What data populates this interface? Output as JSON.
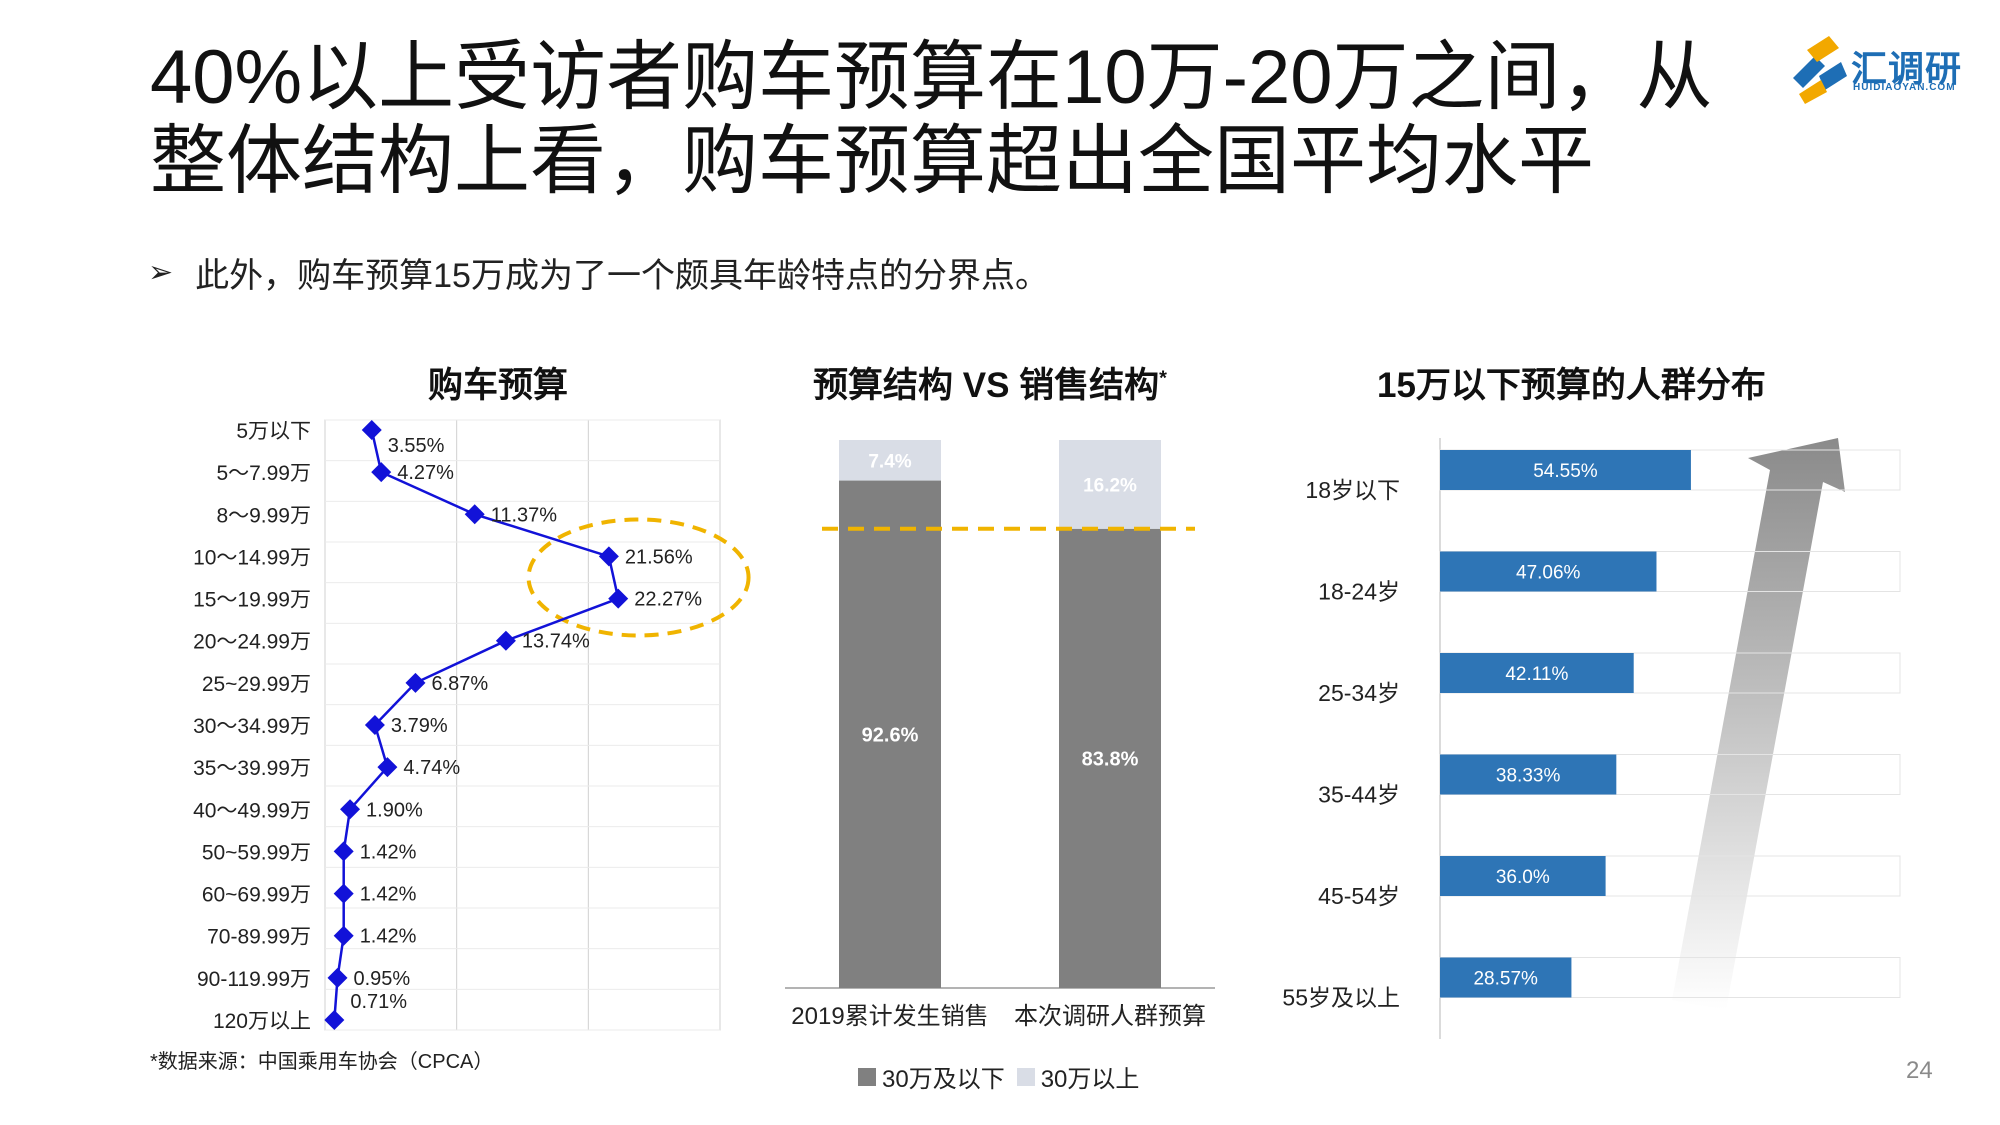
{
  "title_lines": [
    "40%以上受访者购车预算在10万-20万之间，从",
    "整体结构上看，购车预算超出全国平均水平"
  ],
  "logo": {
    "text": "汇调研",
    "sub": "HUIDIAOYAN.COM"
  },
  "bullet": {
    "symbol": "➢",
    "text": "此外，购车预算15万成为了一个颇具年龄特点的分界点。"
  },
  "source": "*数据来源：中国乘用车协会（CPCA）",
  "page_number": "24",
  "colors": {
    "line": "#1212d8",
    "highlight": "#f0b400",
    "dark_bar": "#808080",
    "light_bar": "#d9dde6",
    "blue_bar": "#2e75b6",
    "grid": "#d0d0d0"
  },
  "chart_data": [
    {
      "type": "line",
      "title": "购车预算",
      "categories": [
        "5万以下",
        "5～7.99万",
        "8～9.99万",
        "10～14.99万",
        "15～19.99万",
        "20～24.99万",
        "25~29.99万",
        "30～34.99万",
        "35～39.99万",
        "40～49.99万",
        "50~59.99万",
        "60~69.99万",
        "70-89.99万",
        "90-119.99万",
        "120万以上"
      ],
      "values": [
        3.55,
        4.27,
        11.37,
        21.56,
        22.27,
        13.74,
        6.87,
        3.79,
        4.74,
        1.9,
        1.42,
        1.42,
        1.42,
        0.95,
        0.71
      ],
      "labels": [
        "3.55%",
        "4.27%",
        "11.37%",
        "21.56%",
        "22.27%",
        "13.74%",
        "6.87%",
        "3.79%",
        "4.74%",
        "1.90%",
        "1.42%",
        "1.42%",
        "1.42%",
        "0.95%",
        "0.71%"
      ],
      "orientation": "vertical-categories",
      "xlim": [
        0,
        30
      ],
      "highlight": [
        "10～14.99万",
        "15～19.99万"
      ]
    },
    {
      "type": "bar",
      "stacked": true,
      "title": "预算结构 VS 销售结构",
      "title_mark": "*",
      "categories": [
        "2019累计发生销售",
        "本次调研人群预算"
      ],
      "series": [
        {
          "name": "30万及以下",
          "values": [
            92.6,
            83.8
          ],
          "labels": [
            "92.6%",
            "83.8%"
          ]
        },
        {
          "name": "30万以上",
          "values": [
            7.4,
            16.2
          ],
          "labels": [
            "7.4%",
            "16.2%"
          ]
        }
      ],
      "ylim": [
        0,
        100
      ],
      "reference_line": 83.8
    },
    {
      "type": "bar",
      "orientation": "horizontal",
      "title": "15万以下预算的人群分布",
      "categories": [
        "18岁以下",
        "18-24岁",
        "25-34岁",
        "35-44岁",
        "45-54岁",
        "55岁及以上"
      ],
      "values": [
        54.55,
        47.06,
        42.11,
        38.33,
        36.0,
        28.57
      ],
      "labels": [
        "54.55%",
        "47.06%",
        "42.11%",
        "38.33%",
        "36.0%",
        "28.57%"
      ],
      "xlim": [
        0,
        100
      ]
    }
  ]
}
